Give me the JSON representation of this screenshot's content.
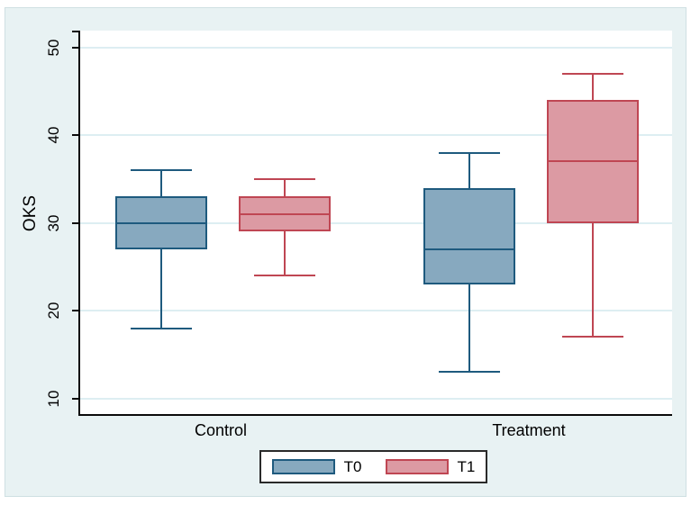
{
  "chart_data": {
    "type": "box",
    "title": "",
    "ylabel": "OKS",
    "xlabel": "",
    "categories": [
      "Control",
      "Treatment"
    ],
    "yticks": [
      10,
      20,
      30,
      40,
      50
    ],
    "ylim": [
      8,
      51.9
    ],
    "grid": true,
    "legend_position": "bottom-center",
    "series": [
      {
        "name": "T0",
        "fill": "#87a9bf",
        "stroke": "#1e5a7e",
        "boxes": [
          {
            "category": "Control",
            "min": 18,
            "q1": 27,
            "median": 30,
            "q3": 33,
            "max": 36
          },
          {
            "category": "Treatment",
            "min": 13,
            "q1": 23,
            "median": 27,
            "q3": 34,
            "max": 38
          }
        ]
      },
      {
        "name": "T1",
        "fill": "#dc9aa3",
        "stroke": "#bf4653",
        "boxes": [
          {
            "category": "Control",
            "min": 24,
            "q1": 29,
            "median": 31,
            "q3": 33,
            "max": 35
          },
          {
            "category": "Treatment",
            "min": 17,
            "q1": 30,
            "median": 37,
            "q3": 44,
            "max": 47
          }
        ]
      }
    ],
    "colors": {
      "panel_bg": "#e8f2f3",
      "plot_bg": "#ffffff",
      "gridline": "#ddeef2",
      "axis": "#0a0a0a"
    }
  }
}
